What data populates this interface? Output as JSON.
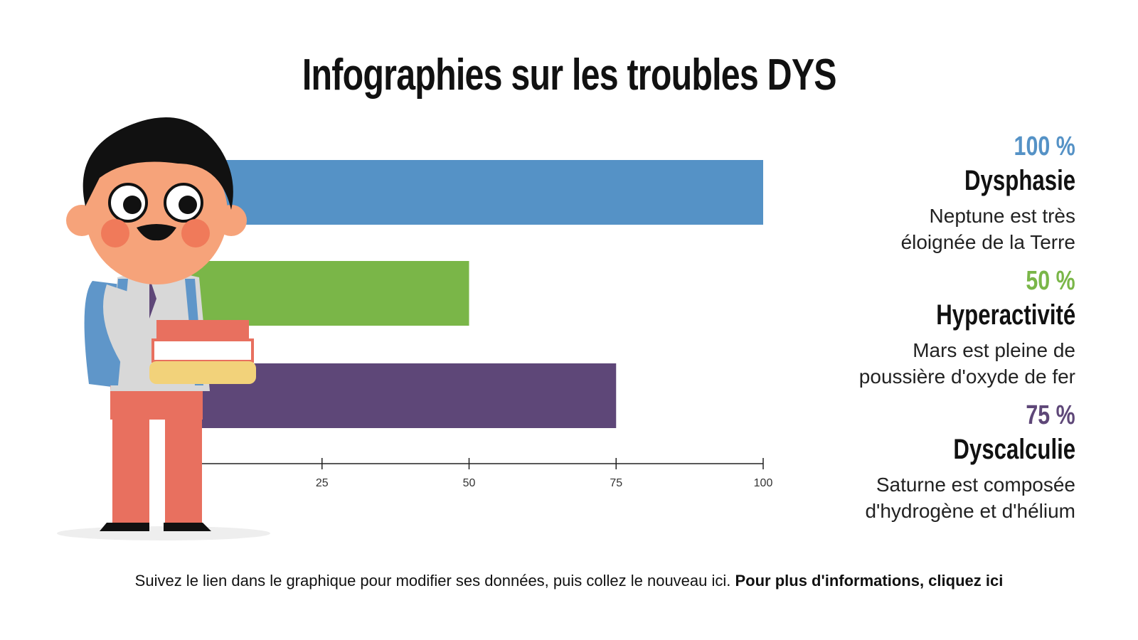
{
  "chart_data": {
    "type": "bar",
    "orientation": "horizontal",
    "title": "Infographies sur les troubles DYS",
    "categories": [
      "Dysphasie",
      "Hyperactivité",
      "Dyscalculie"
    ],
    "values": [
      100,
      50,
      75
    ],
    "colors": [
      "#5592c6",
      "#7ab648",
      "#5e4778"
    ],
    "xlim": [
      0,
      100
    ],
    "xticks": [
      25,
      50,
      75,
      100
    ],
    "grid": false
  },
  "legend": [
    {
      "pct": "100 %",
      "name": "Dysphasie",
      "desc1": "Neptune est très",
      "desc2": "éloignée de la Terre",
      "color": "#5592c6"
    },
    {
      "pct": "50 %",
      "name": "Hyperactivité",
      "desc1": "Mars est pleine de",
      "desc2": "poussière d'oxyde de fer",
      "color": "#7ab648"
    },
    {
      "pct": "75 %",
      "name": "Dyscalculie",
      "desc1": "Saturne est composée",
      "desc2": "d'hydrogène et d'hélium",
      "color": "#5e4778"
    }
  ],
  "footer": {
    "text": "Suivez le lien dans le graphique pour modifier ses données, puis collez le nouveau ici. ",
    "link": "Pour plus d'informations, cliquez ici"
  }
}
